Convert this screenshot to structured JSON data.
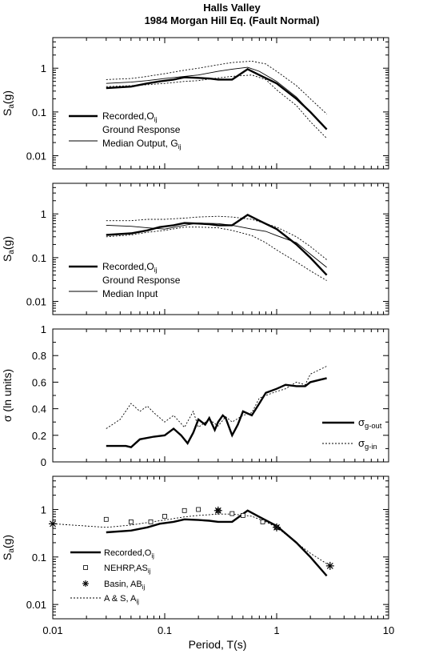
{
  "figure": {
    "title_line1": "Halls Valley",
    "title_line2": "1984 Morgan Hill Eq. (Fault Normal)",
    "xlabel": "Period, T(s)",
    "x_ticks": [
      "0.01",
      "0.1",
      "1",
      "10"
    ]
  },
  "chart_data": [
    {
      "type": "line",
      "panel": 1,
      "ylabel": "Sa(g)",
      "yscale": "log",
      "xscale": "log",
      "xlim": [
        0.01,
        10
      ],
      "ylim": [
        0.005,
        5
      ],
      "y_ticks": [
        "0.01",
        "0.1",
        "1"
      ],
      "legend_position": "left",
      "legend": [
        {
          "text": "Recorded,O",
          "sub": "ij",
          "style": "thick"
        },
        {
          "text": "Ground Response",
          "text2": "Median Output, G",
          "sub": "ij",
          "style": "thin"
        }
      ],
      "series": [
        {
          "name": "Recorded,Oij",
          "style": "thick",
          "x": [
            0.03,
            0.05,
            0.07,
            0.09,
            0.12,
            0.15,
            0.2,
            0.25,
            0.3,
            0.4,
            0.55,
            0.7,
            1.0,
            1.5,
            2.0,
            2.8
          ],
          "y": [
            0.35,
            0.38,
            0.45,
            0.5,
            0.55,
            0.62,
            0.6,
            0.58,
            0.55,
            0.55,
            0.95,
            0.7,
            0.45,
            0.2,
            0.1,
            0.04
          ]
        },
        {
          "name": "Ground Response Median Output, Gij",
          "style": "thin",
          "x": [
            0.03,
            0.05,
            0.07,
            0.1,
            0.15,
            0.2,
            0.3,
            0.4,
            0.55,
            0.7,
            1.0,
            1.5,
            2.0,
            2.8
          ],
          "y": [
            0.45,
            0.48,
            0.52,
            0.58,
            0.65,
            0.7,
            0.85,
            0.95,
            1.05,
            0.85,
            0.5,
            0.22,
            0.1,
            0.04
          ]
        },
        {
          "name": "upper bound",
          "style": "dotted",
          "x": [
            0.03,
            0.05,
            0.07,
            0.1,
            0.15,
            0.2,
            0.3,
            0.4,
            0.6,
            0.8,
            1.0,
            1.5,
            2.0,
            2.8
          ],
          "y": [
            0.55,
            0.58,
            0.65,
            0.75,
            0.9,
            1.0,
            1.2,
            1.35,
            1.45,
            1.25,
            0.85,
            0.4,
            0.2,
            0.09
          ]
        },
        {
          "name": "lower bound",
          "style": "dotted",
          "x": [
            0.03,
            0.05,
            0.07,
            0.1,
            0.15,
            0.2,
            0.3,
            0.4,
            0.6,
            0.8,
            1.0,
            1.5,
            2.0,
            2.8
          ],
          "y": [
            0.38,
            0.4,
            0.42,
            0.45,
            0.5,
            0.52,
            0.6,
            0.65,
            0.7,
            0.55,
            0.32,
            0.14,
            0.06,
            0.025
          ]
        }
      ]
    },
    {
      "type": "line",
      "panel": 2,
      "ylabel": "Sa(g)",
      "yscale": "log",
      "xscale": "log",
      "xlim": [
        0.01,
        10
      ],
      "ylim": [
        0.005,
        5
      ],
      "y_ticks": [
        "0.01",
        "0.1",
        "1"
      ],
      "legend_position": "left",
      "legend": [
        {
          "text": "Recorded,O",
          "sub": "ij",
          "style": "thick"
        },
        {
          "text": "Ground Response",
          "text2": "Median Input",
          "sub": "",
          "style": "thin"
        }
      ],
      "series": [
        {
          "name": "Recorded,Oij",
          "style": "thick",
          "x": [
            0.03,
            0.05,
            0.07,
            0.09,
            0.12,
            0.15,
            0.2,
            0.25,
            0.3,
            0.4,
            0.55,
            0.7,
            1.0,
            1.5,
            2.0,
            2.8
          ],
          "y": [
            0.33,
            0.36,
            0.42,
            0.5,
            0.55,
            0.62,
            0.6,
            0.58,
            0.55,
            0.55,
            0.95,
            0.7,
            0.45,
            0.2,
            0.1,
            0.04
          ]
        },
        {
          "name": "Ground Response Median Input",
          "style": "thin",
          "x": [
            0.03,
            0.05,
            0.07,
            0.1,
            0.15,
            0.2,
            0.3,
            0.4,
            0.6,
            0.8,
            1.0,
            1.5,
            2.0,
            2.8
          ],
          "y": [
            0.55,
            0.52,
            0.48,
            0.45,
            0.55,
            0.62,
            0.6,
            0.55,
            0.45,
            0.4,
            0.32,
            0.22,
            0.12,
            0.06
          ]
        },
        {
          "name": "upper bound",
          "style": "dotted",
          "x": [
            0.03,
            0.05,
            0.07,
            0.1,
            0.15,
            0.2,
            0.3,
            0.4,
            0.6,
            0.8,
            1.0,
            1.5,
            2.0,
            2.8
          ],
          "y": [
            0.7,
            0.7,
            0.75,
            0.75,
            0.8,
            0.85,
            0.88,
            0.85,
            0.75,
            0.6,
            0.5,
            0.3,
            0.18,
            0.09
          ]
        },
        {
          "name": "lower bound",
          "style": "dotted",
          "x": [
            0.03,
            0.05,
            0.07,
            0.1,
            0.15,
            0.2,
            0.3,
            0.4,
            0.6,
            0.8,
            1.0,
            1.5,
            2.0,
            2.8
          ],
          "y": [
            0.3,
            0.33,
            0.38,
            0.42,
            0.5,
            0.5,
            0.48,
            0.42,
            0.32,
            0.22,
            0.15,
            0.08,
            0.05,
            0.03
          ]
        }
      ]
    },
    {
      "type": "line",
      "panel": 3,
      "ylabel": "σ (ln units)",
      "yscale": "linear",
      "xscale": "log",
      "xlim": [
        0.01,
        10
      ],
      "ylim": [
        0,
        1
      ],
      "y_ticks": [
        "0",
        "0.2",
        "0.4",
        "0.6",
        "0.8",
        "1"
      ],
      "legend_position": "bottom-right",
      "legend": [
        {
          "text": "σ",
          "sub": "g-out",
          "style": "thick"
        },
        {
          "text": "σ",
          "sub": "g-in",
          "style": "dotted"
        }
      ],
      "series": [
        {
          "name": "σg-out",
          "style": "thick",
          "x": [
            0.03,
            0.045,
            0.05,
            0.06,
            0.08,
            0.1,
            0.12,
            0.14,
            0.16,
            0.18,
            0.2,
            0.23,
            0.25,
            0.28,
            0.3,
            0.33,
            0.35,
            0.4,
            0.45,
            0.5,
            0.6,
            0.7,
            0.8,
            1.0,
            1.2,
            1.5,
            1.8,
            2.0,
            2.5,
            2.8
          ],
          "y": [
            0.12,
            0.12,
            0.11,
            0.17,
            0.19,
            0.2,
            0.25,
            0.2,
            0.14,
            0.22,
            0.32,
            0.28,
            0.33,
            0.24,
            0.3,
            0.35,
            0.33,
            0.2,
            0.28,
            0.38,
            0.35,
            0.44,
            0.52,
            0.55,
            0.58,
            0.57,
            0.57,
            0.6,
            0.62,
            0.63
          ]
        },
        {
          "name": "σg-in",
          "style": "dotted",
          "x": [
            0.03,
            0.04,
            0.05,
            0.06,
            0.07,
            0.08,
            0.1,
            0.12,
            0.15,
            0.18,
            0.2,
            0.25,
            0.3,
            0.35,
            0.4,
            0.5,
            0.6,
            0.7,
            0.8,
            1.0,
            1.2,
            1.5,
            1.8,
            2.0,
            2.5,
            2.8
          ],
          "y": [
            0.25,
            0.32,
            0.44,
            0.38,
            0.42,
            0.37,
            0.3,
            0.35,
            0.26,
            0.38,
            0.26,
            0.32,
            0.27,
            0.34,
            0.3,
            0.35,
            0.37,
            0.48,
            0.5,
            0.53,
            0.55,
            0.6,
            0.58,
            0.66,
            0.7,
            0.72
          ]
        }
      ]
    },
    {
      "type": "line",
      "panel": 4,
      "ylabel": "Sa(g)",
      "yscale": "log",
      "xscale": "log",
      "xlim": [
        0.01,
        10
      ],
      "ylim": [
        0.005,
        5
      ],
      "y_ticks": [
        "0.01",
        "0.1",
        "1"
      ],
      "legend_position": "bottom-left",
      "legend": [
        {
          "text": "Recorded,O",
          "sub": "ij",
          "style": "thick"
        },
        {
          "text": "NEHRP,AS",
          "sub": "ij",
          "style": "square"
        },
        {
          "text": "Basin, AB",
          "sub": "ij",
          "style": "star"
        },
        {
          "text": "A & S, A",
          "sub": "ij",
          "style": "dotted"
        }
      ],
      "series": [
        {
          "name": "Recorded,Oij",
          "style": "thick",
          "x": [
            0.03,
            0.05,
            0.07,
            0.09,
            0.12,
            0.15,
            0.2,
            0.25,
            0.3,
            0.4,
            0.55,
            0.7,
            1.0,
            1.5,
            2.0,
            2.8
          ],
          "y": [
            0.33,
            0.36,
            0.42,
            0.5,
            0.55,
            0.62,
            0.6,
            0.58,
            0.55,
            0.55,
            0.95,
            0.7,
            0.45,
            0.2,
            0.1,
            0.04
          ]
        },
        {
          "name": "A & S, Aij",
          "style": "dotted",
          "x": [
            0.01,
            0.03,
            0.05,
            0.07,
            0.1,
            0.15,
            0.2,
            0.3,
            0.4,
            0.6,
            0.8,
            1.0,
            1.5,
            2.0,
            3.0
          ],
          "y": [
            0.5,
            0.42,
            0.47,
            0.53,
            0.6,
            0.7,
            0.75,
            0.8,
            0.8,
            0.72,
            0.55,
            0.42,
            0.2,
            0.12,
            0.065
          ]
        },
        {
          "name": "NEHRP,ASij",
          "style": "square",
          "x": [
            0.03,
            0.05,
            0.075,
            0.1,
            0.15,
            0.2,
            0.3,
            0.4,
            0.5,
            0.75,
            1.0
          ],
          "y": [
            0.62,
            0.55,
            0.55,
            0.72,
            0.95,
            1.0,
            0.95,
            0.82,
            0.75,
            0.55,
            0.42
          ]
        },
        {
          "name": "Basin, ABij",
          "style": "star",
          "x": [
            0.01,
            0.3,
            1.0,
            3.0
          ],
          "y": [
            0.5,
            0.95,
            0.42,
            0.065
          ]
        }
      ]
    }
  ]
}
